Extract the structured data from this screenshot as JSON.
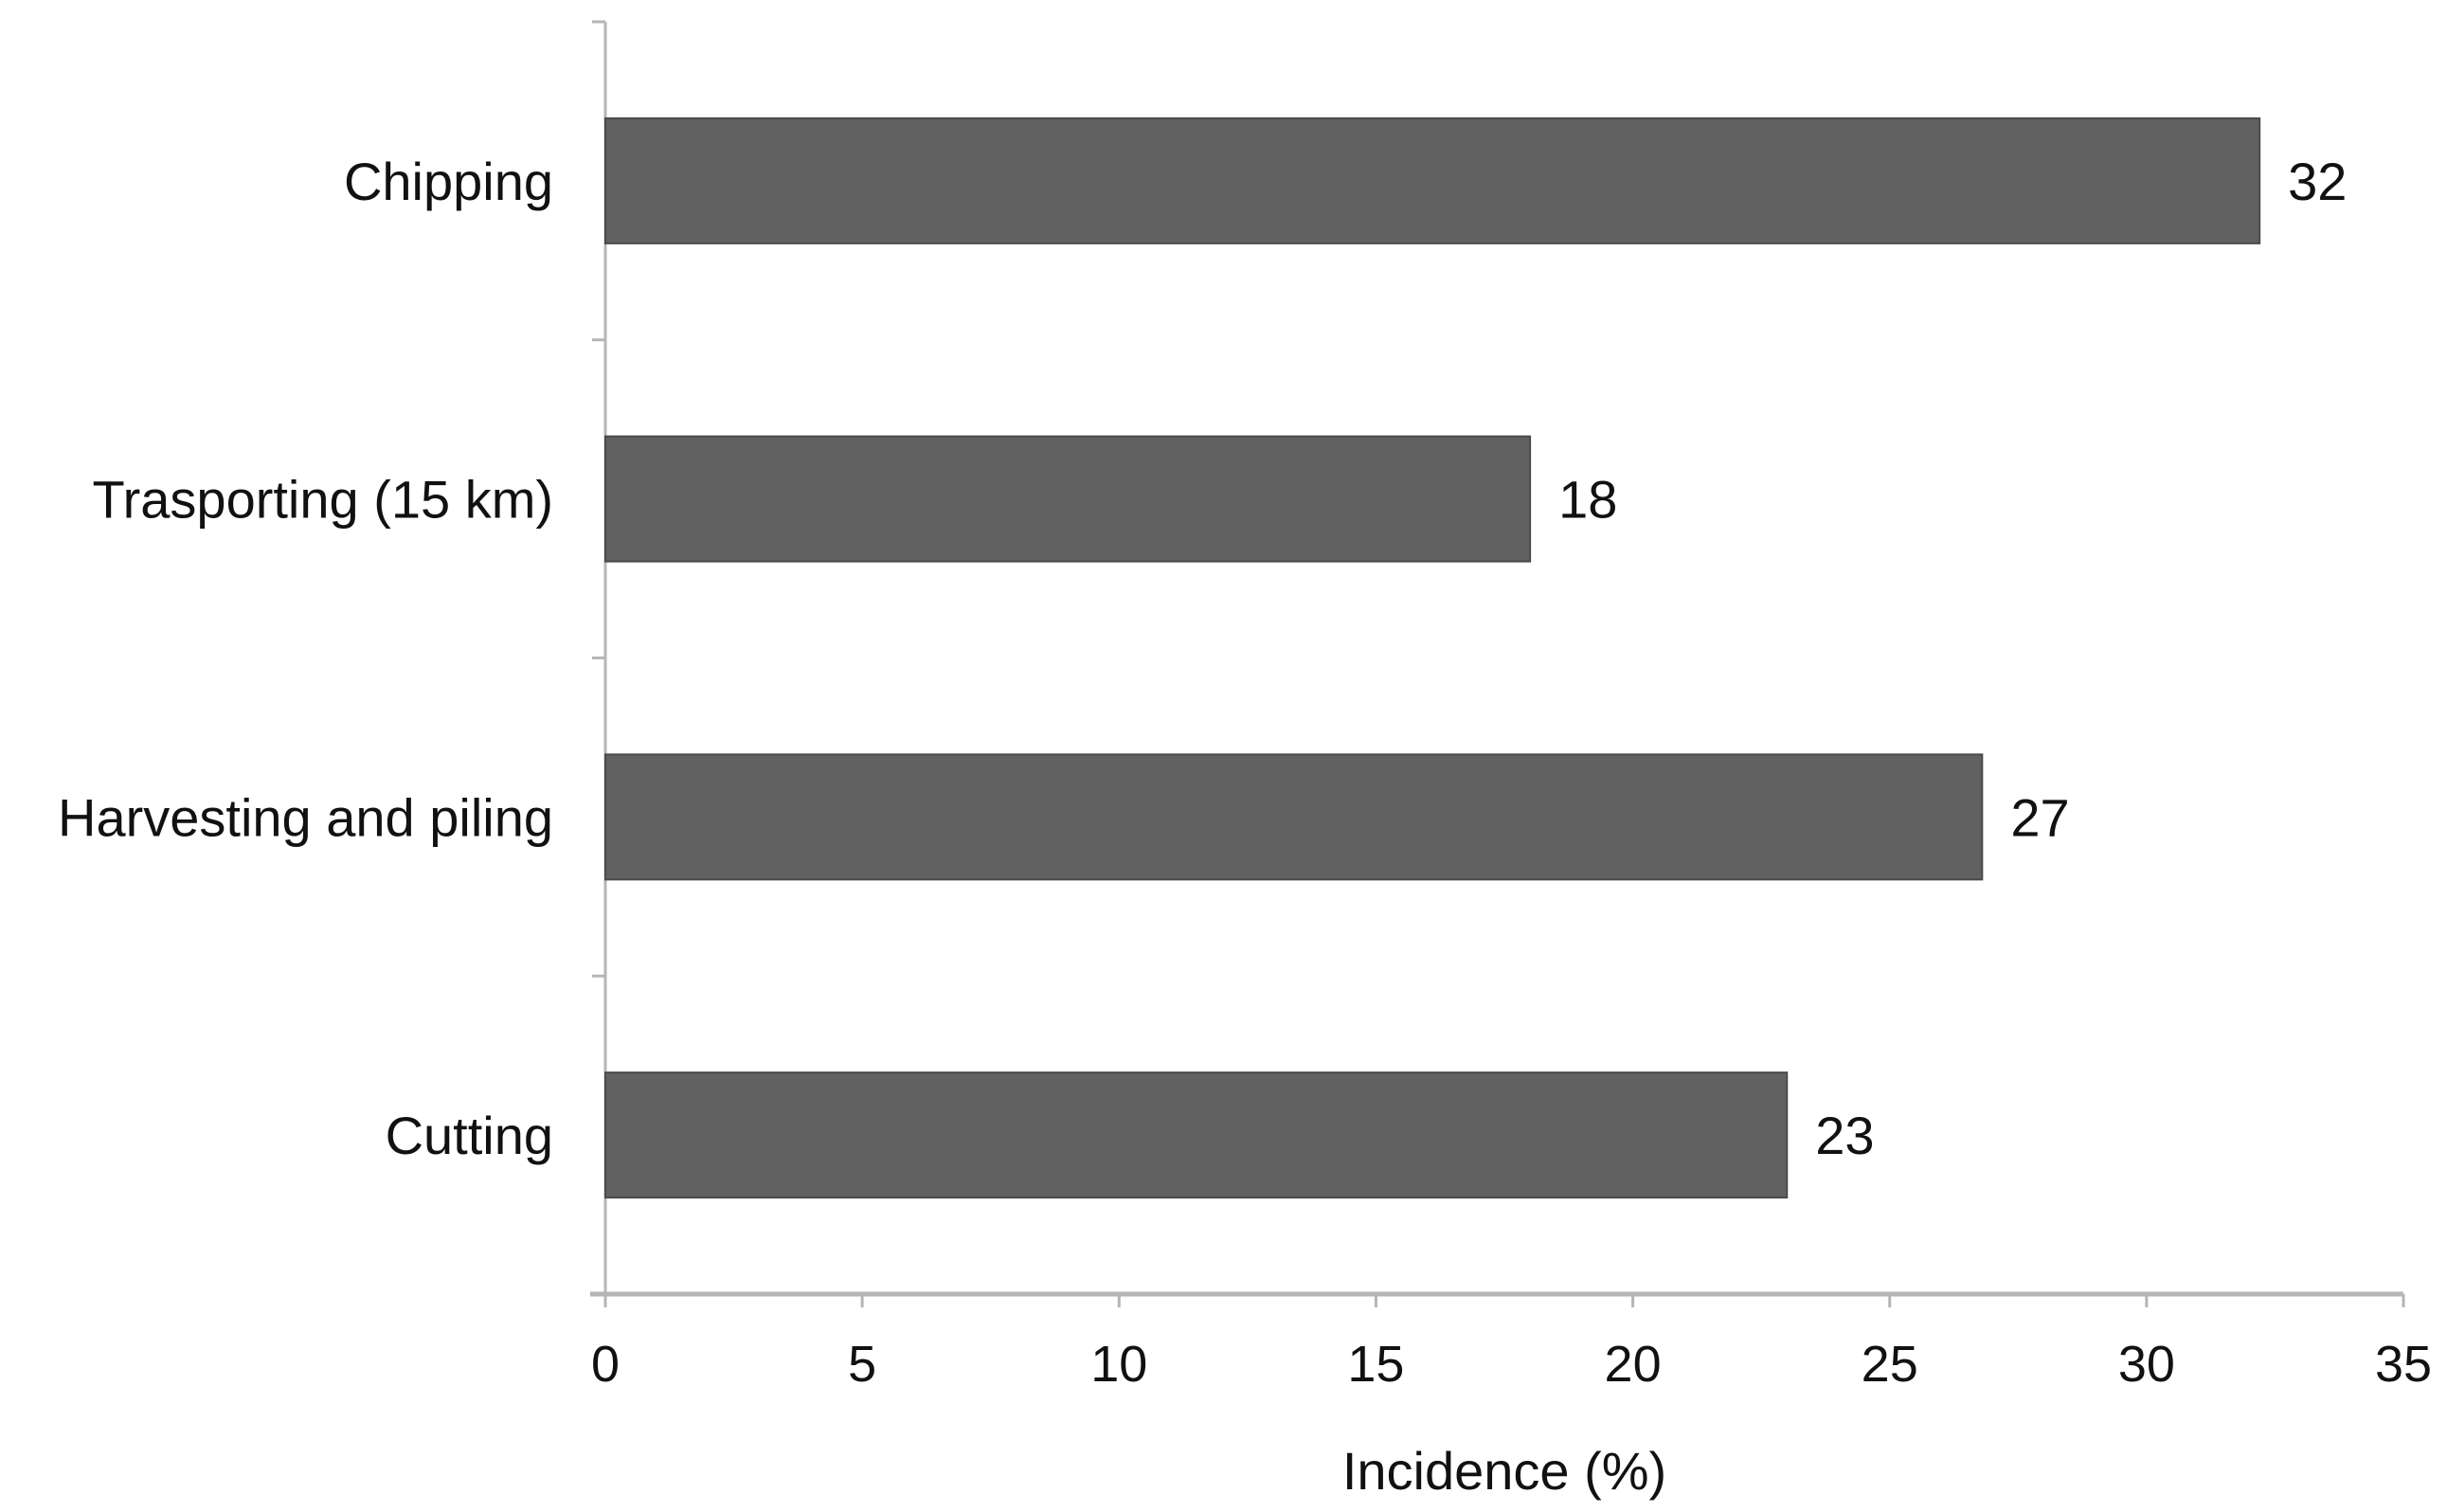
{
  "chart_data": {
    "type": "bar",
    "orientation": "horizontal",
    "categories": [
      "Chipping",
      "Trasporting (15 km)",
      "Harvesting and piling",
      "Cutting"
    ],
    "values": [
      32.2,
      18.0,
      26.8,
      23.0
    ],
    "data_labels": [
      "32",
      "18",
      "27",
      "23"
    ],
    "title": "",
    "xlabel": "Incidence (%)",
    "ylabel": "",
    "xlim": [
      0,
      35
    ],
    "xticks": [
      "0",
      "5",
      "10",
      "15",
      "20",
      "25",
      "30",
      "35"
    ],
    "grid": false,
    "legend": "none",
    "bar_color": "#616161"
  }
}
